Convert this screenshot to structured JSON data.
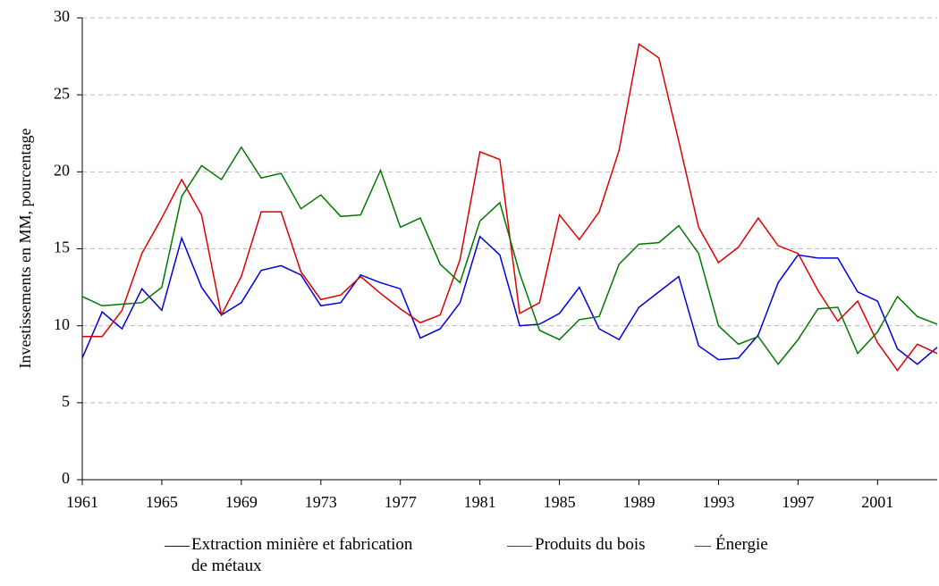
{
  "chart_data": {
    "type": "line",
    "y_label": "Investissements en MM, pourcentage",
    "x": [
      1961,
      1962,
      1963,
      1964,
      1965,
      1966,
      1967,
      1968,
      1969,
      1970,
      1971,
      1972,
      1973,
      1974,
      1975,
      1976,
      1977,
      1978,
      1979,
      1980,
      1981,
      1982,
      1983,
      1984,
      1985,
      1986,
      1987,
      1988,
      1989,
      1990,
      1991,
      1992,
      1993,
      1994,
      1995,
      1996,
      1997,
      1998,
      1999,
      2000,
      2001,
      2002,
      2003,
      2004
    ],
    "series": [
      {
        "name": "Extraction minière et fabrication de métaux",
        "color": "#0000dd",
        "values": [
          7.9,
          10.9,
          9.8,
          12.4,
          11.0,
          15.7,
          12.5,
          10.7,
          11.5,
          13.6,
          13.9,
          13.3,
          11.3,
          11.5,
          13.3,
          12.8,
          12.4,
          9.2,
          9.8,
          11.5,
          15.8,
          14.6,
          10.0,
          10.1,
          10.8,
          12.5,
          9.8,
          9.1,
          11.2,
          12.2,
          13.2,
          8.7,
          7.8,
          7.9,
          9.4,
          12.8,
          14.6,
          14.4,
          14.4,
          12.2,
          11.6,
          8.5,
          7.5,
          8.6
        ]
      },
      {
        "name": "Produits du bois",
        "color": "#dd0000",
        "values": [
          9.3,
          9.3,
          11.0,
          14.7,
          17.0,
          19.5,
          17.2,
          10.7,
          13.2,
          17.4,
          17.4,
          13.5,
          11.7,
          12.0,
          13.2,
          12.1,
          11.1,
          10.2,
          10.7,
          14.3,
          21.3,
          20.8,
          10.8,
          11.5,
          17.2,
          15.6,
          17.4,
          21.4,
          28.3,
          27.4,
          22.0,
          16.4,
          14.1,
          15.1,
          17.0,
          15.2,
          14.7,
          12.3,
          10.3,
          11.6,
          8.9,
          7.1,
          8.8,
          8.2
        ]
      },
      {
        "name": "Énergie",
        "color": "#007700",
        "values": [
          11.9,
          11.3,
          11.4,
          11.5,
          12.5,
          18.4,
          20.4,
          19.5,
          21.6,
          19.6,
          19.9,
          17.6,
          18.5,
          17.1,
          17.2,
          20.1,
          16.4,
          17.0,
          14.0,
          12.8,
          16.8,
          18.0,
          13.4,
          9.7,
          9.1,
          10.4,
          10.6,
          14.0,
          15.3,
          15.4,
          16.5,
          14.7,
          10.0,
          8.8,
          9.3,
          7.5,
          9.1,
          11.1,
          11.2,
          8.2,
          9.6,
          11.9,
          10.6,
          10.1
        ]
      }
    ],
    "xlim": [
      1961,
      2004
    ],
    "xticks": [
      1961,
      1965,
      1969,
      1973,
      1977,
      1981,
      1985,
      1989,
      1993,
      1997,
      2001
    ],
    "ylim": [
      0,
      30
    ],
    "yticks": [
      0,
      5,
      10,
      15,
      20,
      25,
      30
    ],
    "grid": true,
    "legend": "bottom"
  }
}
